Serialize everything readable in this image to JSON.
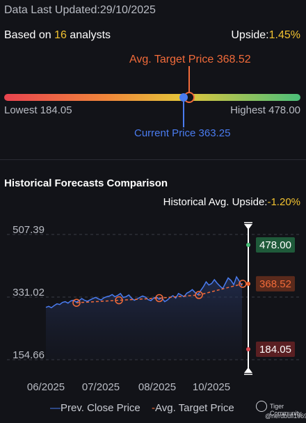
{
  "header": {
    "updated_label": "Data Last Updated:",
    "updated_date": "29/10/2025"
  },
  "summary": {
    "based_on_prefix": "Based on",
    "analyst_count": "16",
    "based_on_suffix": "analysts",
    "upside_label": "Upside:",
    "upside_value": "1.45%"
  },
  "range": {
    "avg_target_label": "Avg. Target Price 368.52",
    "lowest_label": "Lowest 184.05",
    "highest_label": "Highest 478.00",
    "current_label": "Current Price 363.25",
    "lowest": 184.05,
    "highest": 478.0,
    "avg_target": 368.52,
    "current": 363.25
  },
  "history": {
    "title": "Historical Forecasts Comparison",
    "avg_upside_label": "Historical Avg. Upside:",
    "avg_upside_value": "-1.20%"
  },
  "chart_data": {
    "type": "line",
    "x_ticks": [
      "06/2025",
      "07/2025",
      "08/2025",
      "10/2025"
    ],
    "y_ticks": [
      "507.39",
      "331.02",
      "154.66"
    ],
    "ylim": [
      154.66,
      507.39
    ],
    "series": [
      {
        "name": "Prev. Close Price",
        "color": "#4a7cf0",
        "values": [
          302,
          305,
          301,
          307,
          312,
          310,
          316,
          318,
          314,
          320,
          322,
          317,
          321,
          327,
          322,
          319,
          323,
          327,
          330,
          326,
          323,
          329,
          332,
          334,
          338,
          332,
          336,
          341,
          330,
          332,
          337,
          328,
          322,
          326,
          330,
          334,
          331,
          324,
          321,
          328,
          331,
          325,
          329,
          318,
          323,
          330,
          335,
          328,
          341,
          337,
          332,
          342,
          346,
          352,
          344,
          338,
          349,
          360,
          374,
          365,
          369,
          380,
          370,
          362,
          355,
          370,
          385,
          378,
          366,
          388,
          376,
          363
        ]
      },
      {
        "name": "Avg. Target Price",
        "color": "#f26b3a",
        "values": [
          315,
          322,
          328,
          337,
          368.52
        ]
      }
    ],
    "range_markers": [
      {
        "label": "478.00",
        "value": 478.0,
        "bg": "#1f5a3a",
        "dot": "#4bc07a"
      },
      {
        "label": "368.52",
        "value": 368.52,
        "bg": "#5a2a1c",
        "dot": "#f26b3a"
      },
      {
        "label": "184.05",
        "value": 184.05,
        "bg": "#5a1f22",
        "dot": "#e04a52"
      }
    ],
    "grid": "dashed-horizontal"
  },
  "legend": {
    "prev_close": "Prev. Close Price",
    "avg_target": "Avg. Target Price"
  },
  "watermark": {
    "brand": "Tiger Community",
    "user": "@nerdbull1669"
  },
  "colors": {
    "bg": "#121318",
    "accent_yellow": "#f2c230",
    "current_blue": "#4a7cf0",
    "target_orange": "#f26b3a",
    "negative": "#f2c230"
  }
}
